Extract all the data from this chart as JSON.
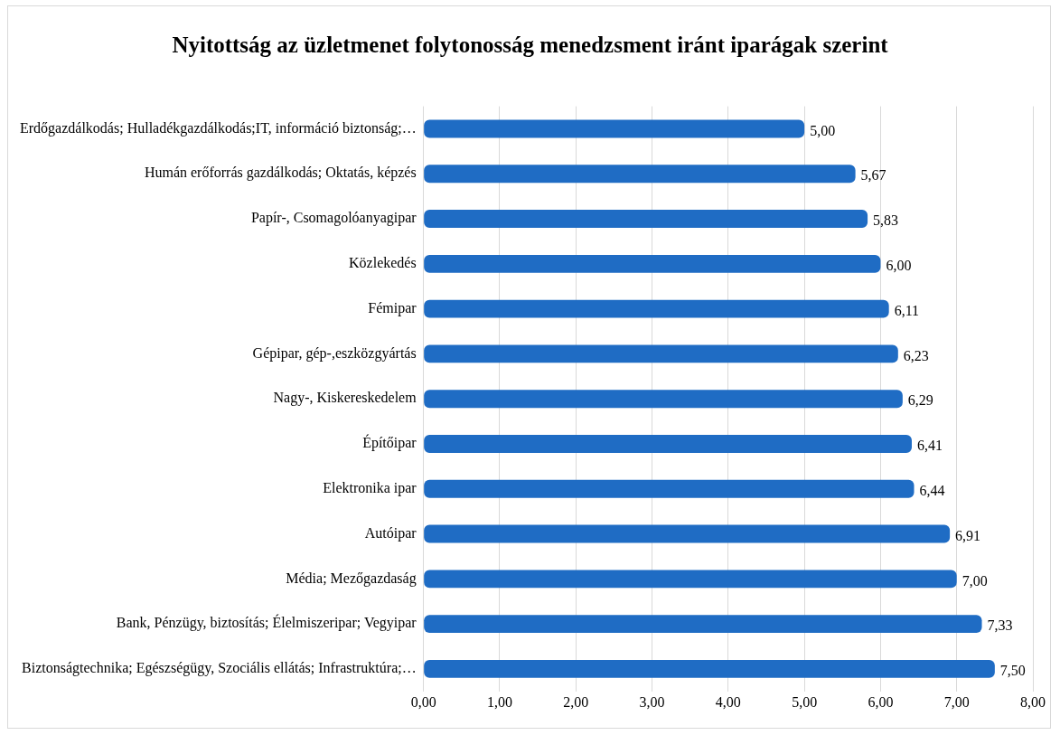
{
  "chart_data": {
    "type": "bar",
    "orientation": "horizontal",
    "title": "Nyitottság az üzletmenet folytonosság menedzsment iránt iparágak szerint",
    "categories": [
      "Erdőgazdálkodás; Hulladékgazdálkodás;IT, információ biztonság;…",
      "Humán erőforrás gazdálkodás; Oktatás, képzés",
      "Papír-, Csomagolóanyagipar",
      "Közlekedés",
      "Fémipar",
      "Gépipar, gép-,eszközgyártás",
      "Nagy-, Kiskereskedelem",
      "Építőipar",
      "Elektronika ipar",
      "Autóipar",
      "Média; Mezőgazdaság",
      "Bank, Pénzügy, biztosítás; Élelmiszeripar; Vegyipar",
      "Biztonságtechnika; Egészségügy, Szociális ellátás; Infrastruktúra;…"
    ],
    "values": [
      5.0,
      5.67,
      5.83,
      6.0,
      6.11,
      6.23,
      6.29,
      6.41,
      6.44,
      6.91,
      7.0,
      7.33,
      7.5
    ],
    "value_labels": [
      "5,00",
      "5,67",
      "5,83",
      "6,00",
      "6,11",
      "6,23",
      "6,29",
      "6,41",
      "6,44",
      "6,91",
      "7,00",
      "7,33",
      "7,50"
    ],
    "color": "#1f6cc4",
    "xlim": [
      0,
      8
    ],
    "xticks": [
      {
        "value": 0,
        "label": "0,00"
      },
      {
        "value": 1,
        "label": "1,00"
      },
      {
        "value": 2,
        "label": "2,00"
      },
      {
        "value": 3,
        "label": "3,00"
      },
      {
        "value": 4,
        "label": "4,00"
      },
      {
        "value": 5,
        "label": "5,00"
      },
      {
        "value": 6,
        "label": "6,00"
      },
      {
        "value": 7,
        "label": "7,00"
      },
      {
        "value": 8,
        "label": "8,00"
      }
    ],
    "grid": "x",
    "legend": false
  }
}
